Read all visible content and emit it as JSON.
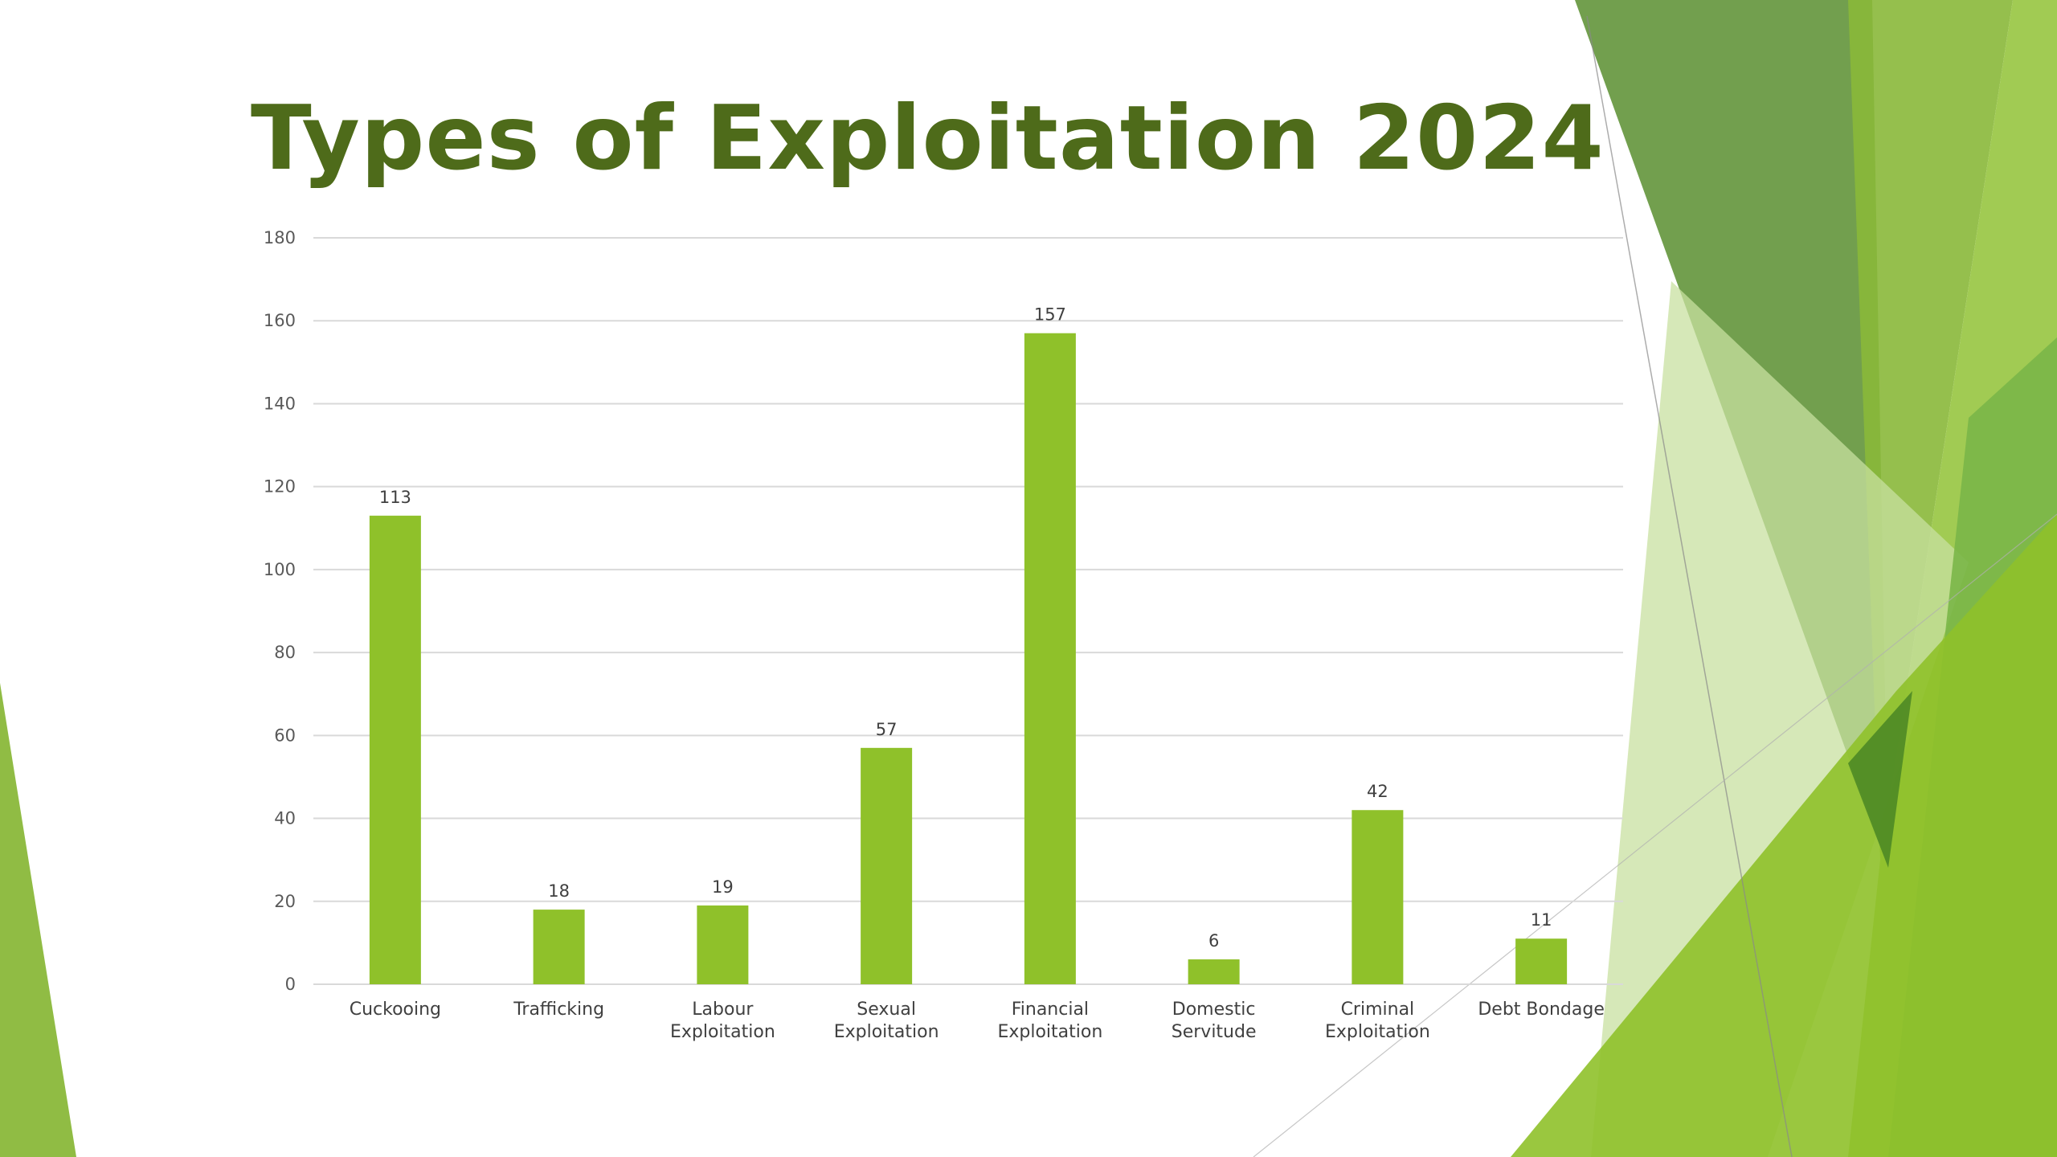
{
  "slide": {
    "title": "Types of Exploitation 2024"
  },
  "theme": {
    "title_color": "#4e6b1a",
    "bar_color": "#8fc12a",
    "grid_color": "#d9d9d9",
    "decor_colors": [
      "#6a9a45",
      "#8ab83a",
      "#9cc84a",
      "#c8e0a0",
      "#7ab648",
      "#4e8a25"
    ]
  },
  "chart_data": {
    "type": "bar",
    "categories": [
      [
        "Cuckooing"
      ],
      [
        "Trafficking"
      ],
      [
        "Labour",
        "Exploitation"
      ],
      [
        "Sexual",
        "Exploitation"
      ],
      [
        "Financial",
        "Exploitation"
      ],
      [
        "Domestic",
        "Servitude"
      ],
      [
        "Criminal",
        "Exploitation"
      ],
      [
        "Debt Bondage"
      ]
    ],
    "values": [
      113,
      18,
      19,
      57,
      157,
      6,
      42,
      11
    ],
    "data_labels": true,
    "ylim": [
      0,
      180
    ],
    "yticks": [
      0,
      20,
      40,
      60,
      80,
      100,
      120,
      140,
      160,
      180
    ],
    "grid": true,
    "legend": "none",
    "xlabel": "",
    "ylabel": ""
  }
}
